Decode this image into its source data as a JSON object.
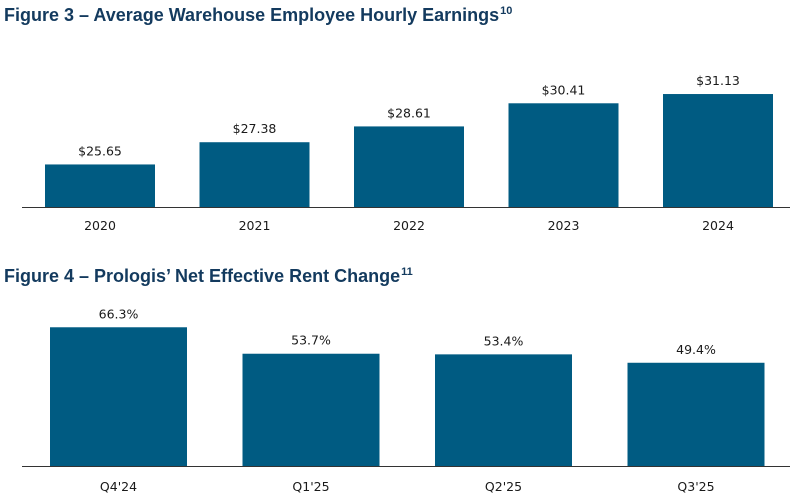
{
  "colors": {
    "bar": "#005b82",
    "title": "#133a5e",
    "axis": "#333333"
  },
  "figure3": {
    "title": "Figure 3 – Average Warehouse Employee Hourly Earnings",
    "footnote": "10"
  },
  "figure4": {
    "title": "Figure 4 – Prologis’ Net Effective Rent Change",
    "footnote": "11"
  },
  "chart_data": [
    {
      "type": "bar",
      "title": "Figure 3 – Average Warehouse Employee Hourly Earnings",
      "categories": [
        "2020",
        "2021",
        "2022",
        "2023",
        "2024"
      ],
      "values": [
        25.65,
        27.38,
        28.61,
        30.41,
        31.13
      ],
      "value_labels": [
        "$25.65",
        "$27.38",
        "$28.61",
        "$30.41",
        "$31.13"
      ],
      "ylim": [
        22.3,
        33.3
      ],
      "grid": false
    },
    {
      "type": "bar",
      "title": "Figure 4 – Prologis’ Net Effective Rent Change",
      "categories": [
        "Q4'24",
        "Q1'25",
        "Q2'25",
        "Q3'25"
      ],
      "values": [
        66.3,
        53.7,
        53.4,
        49.4
      ],
      "value_labels": [
        "66.3%",
        "53.7%",
        "53.4%",
        "49.4%"
      ],
      "ylim": [
        0,
        68.4
      ],
      "grid": false
    }
  ]
}
